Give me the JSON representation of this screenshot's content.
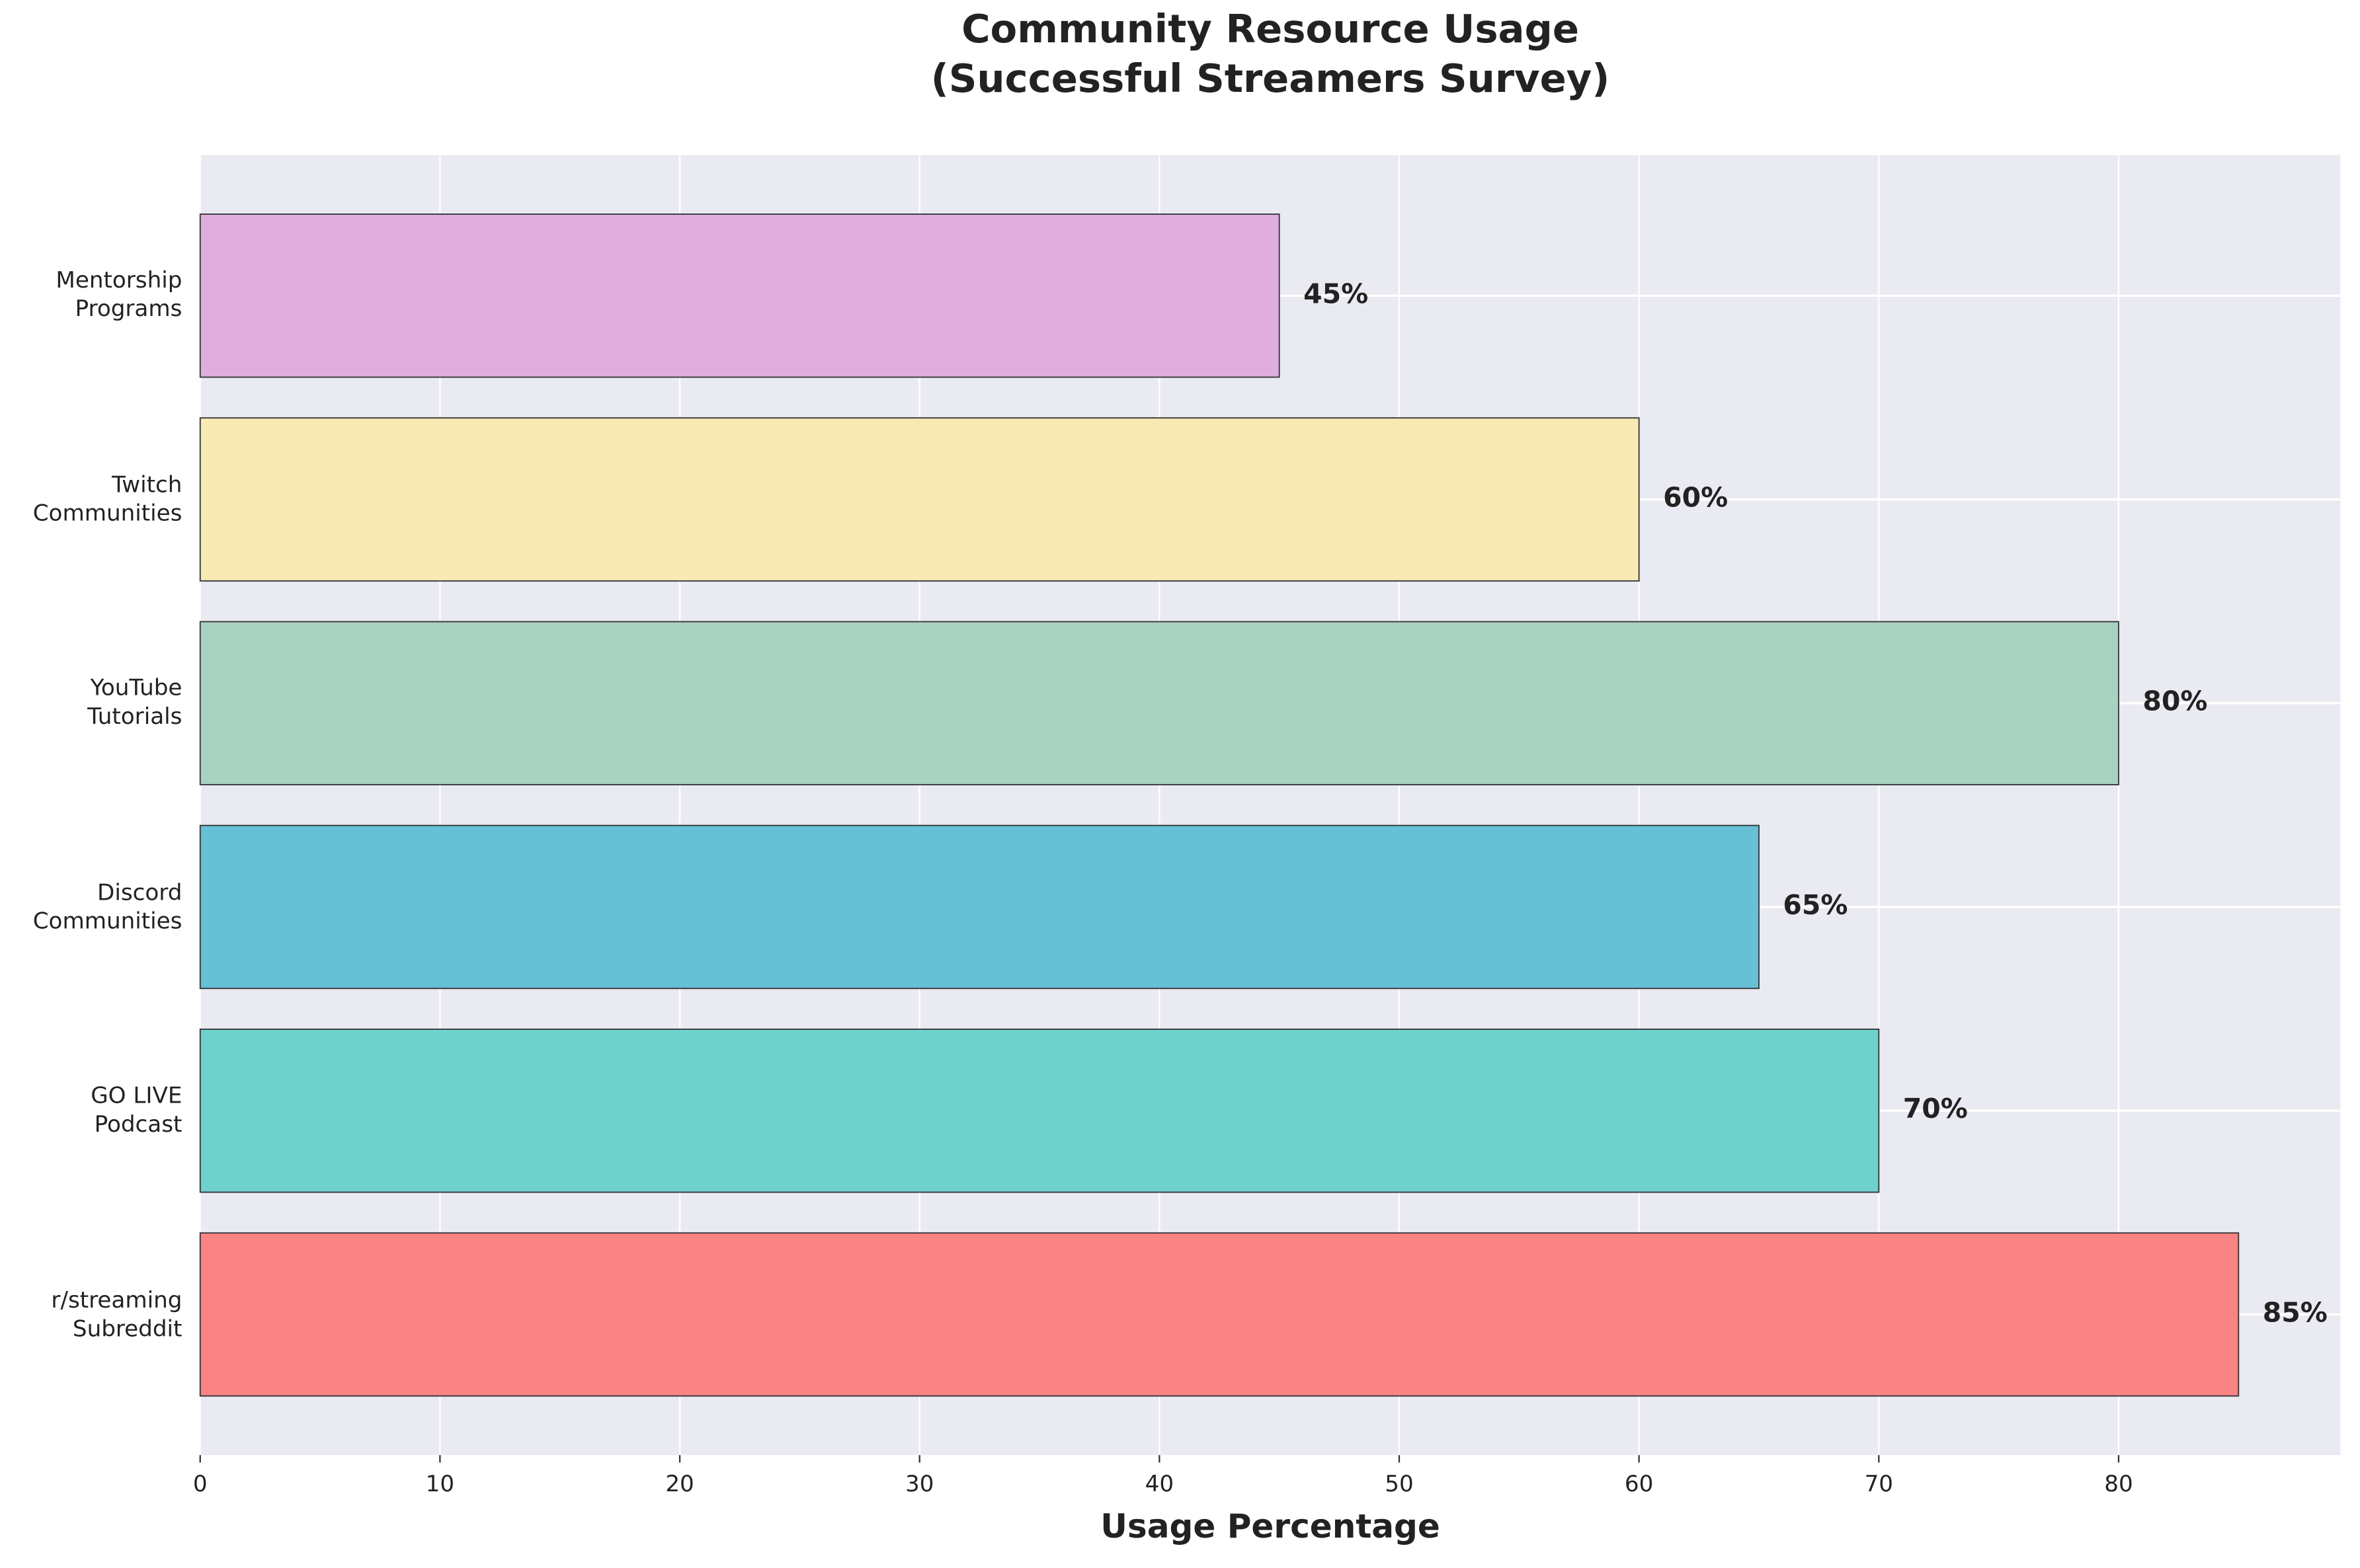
{
  "chart_data": {
    "type": "barh",
    "title": "Community Resource Usage\n(Successful Streamers Survey)",
    "xlabel": "Usage Percentage",
    "categories": [
      "r/streaming\nSubreddit",
      "GO LIVE\nPodcast",
      "Discord\nCommunities",
      "YouTube\nTutorials",
      "Twitch\nCommunities",
      "Mentorship\nPrograms"
    ],
    "values": [
      85,
      70,
      65,
      80,
      60,
      45
    ],
    "value_labels": [
      "85%",
      "70%",
      "65%",
      "80%",
      "60%",
      "45%"
    ],
    "colors": [
      "#fa8383",
      "#6fd1cc",
      "#66c0d6",
      "#a8d3c0",
      "#f9e9b5",
      "#dfaedf"
    ],
    "xlim": [
      0,
      89.25
    ],
    "xticks": [
      0,
      10,
      20,
      30,
      40,
      50,
      60,
      70,
      80
    ],
    "grid": true
  }
}
